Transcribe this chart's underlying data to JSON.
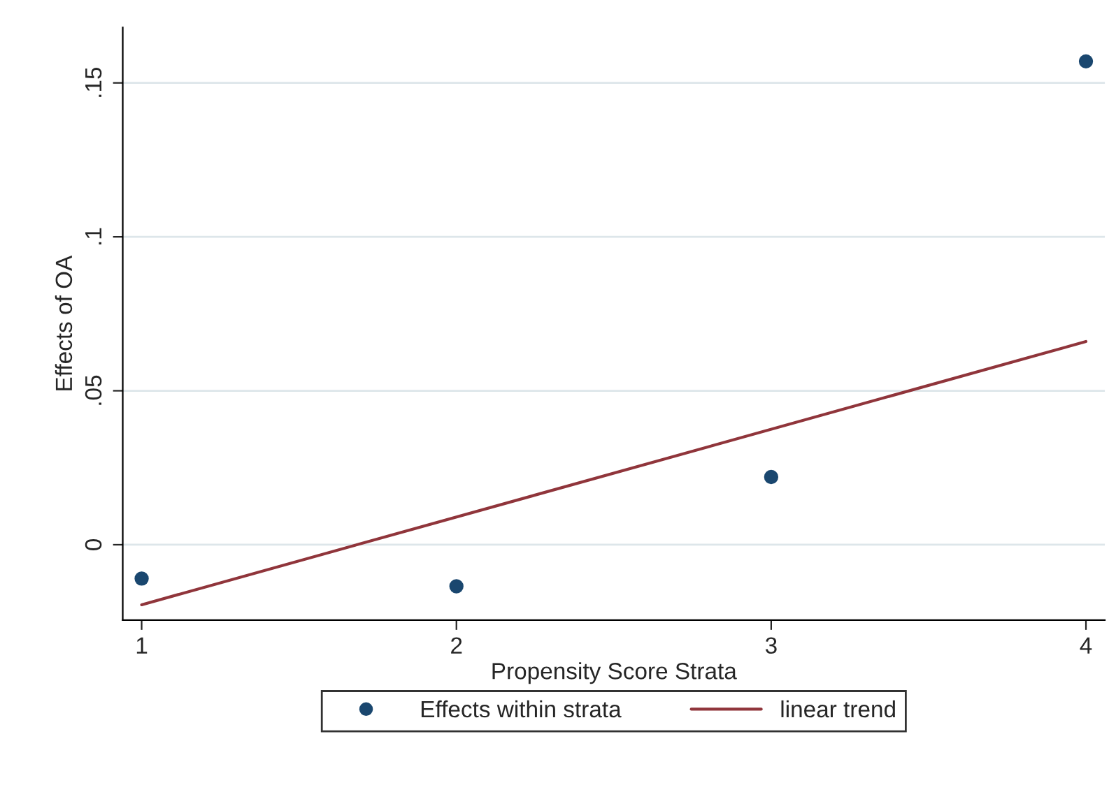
{
  "chart_data": {
    "type": "scatter",
    "xlabel": "Propensity Score Strata",
    "ylabel": "Effects of OA",
    "series": [
      {
        "name": "Effects within strata",
        "color": "#1a476f",
        "x": [
          1,
          2,
          3,
          4
        ],
        "values": [
          -0.011,
          -0.0135,
          0.022,
          0.157
        ],
        "marker": "circle"
      },
      {
        "name": "linear trend",
        "type": "line",
        "color": "#90353b",
        "x": [
          1,
          4
        ],
        "values": [
          -0.0195,
          0.066
        ],
        "marker": "none",
        "line_style": "solid"
      }
    ],
    "xlim": [
      0.94,
      4.06
    ],
    "xticks": [
      1,
      2,
      3,
      4
    ],
    "ylim": [
      -0.0245,
      0.168
    ],
    "yticks": [
      0,
      {
        "value": 0.05,
        "label": ".05"
      },
      {
        "value": 0.1,
        "label": ".1"
      },
      {
        "value": 0.15,
        "label": ".15"
      }
    ],
    "grid": "y",
    "legend": "bottom"
  }
}
